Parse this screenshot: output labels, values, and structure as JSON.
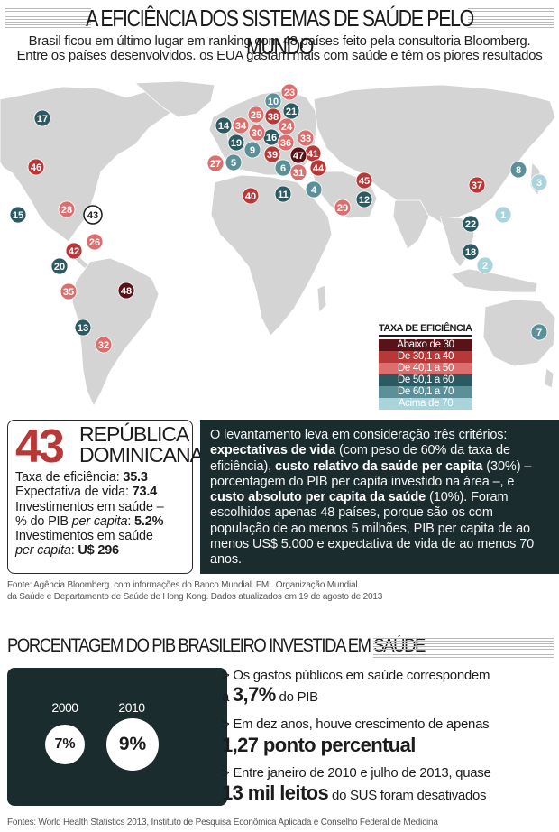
{
  "header": {
    "title": "A EFICIÊNCIA DOS SISTEMAS DE SAÚDE PELO MUNDO",
    "subtitle_line1": "Brasil ficou em último lugar em ranking com 48 países feito pela consultoria Bloomberg.",
    "subtitle_line2": "Entre os países desenvolvidos. os EUA gastam mais com saúde e têm os piores resultados"
  },
  "legend": {
    "title": "TAXA DE EFICIÊNCIA",
    "items": [
      {
        "label": "Abaixo de 30",
        "color": "#5a1219"
      },
      {
        "label": "De 30,1 a 40",
        "color": "#b83838"
      },
      {
        "label": "De 40,1 a 50",
        "color": "#dc6e6e"
      },
      {
        "label": "De 50,1 a 60",
        "color": "#2c5a62"
      },
      {
        "label": "De 60,1 a 70",
        "color": "#5b9099"
      },
      {
        "label": "Acima de 70",
        "color": "#a9d4dc"
      }
    ]
  },
  "chart_data": {
    "type": "map",
    "description_units": "rank in efficiency ranking (1 = best, 48 = worst)",
    "countries": [
      {
        "rank": 1,
        "tier": 5
      },
      {
        "rank": 2,
        "tier": 5
      },
      {
        "rank": 3,
        "tier": 5
      },
      {
        "rank": 4,
        "tier": 4
      },
      {
        "rank": 5,
        "tier": 4
      },
      {
        "rank": 6,
        "tier": 4
      },
      {
        "rank": 7,
        "tier": 4
      },
      {
        "rank": 8,
        "tier": 4
      },
      {
        "rank": 9,
        "tier": 4
      },
      {
        "rank": 10,
        "tier": 4
      },
      {
        "rank": 11,
        "tier": 3
      },
      {
        "rank": 12,
        "tier": 3
      },
      {
        "rank": 13,
        "tier": 3
      },
      {
        "rank": 14,
        "tier": 3
      },
      {
        "rank": 15,
        "tier": 3
      },
      {
        "rank": 16,
        "tier": 3
      },
      {
        "rank": 17,
        "tier": 3
      },
      {
        "rank": 18,
        "tier": 3
      },
      {
        "rank": 19,
        "tier": 3
      },
      {
        "rank": 20,
        "tier": 3
      },
      {
        "rank": 21,
        "tier": 3
      },
      {
        "rank": 22,
        "tier": 3
      },
      {
        "rank": 23,
        "tier": 2
      },
      {
        "rank": 24,
        "tier": 2
      },
      {
        "rank": 25,
        "tier": 2
      },
      {
        "rank": 26,
        "tier": 2
      },
      {
        "rank": 27,
        "tier": 2
      },
      {
        "rank": 28,
        "tier": 2
      },
      {
        "rank": 29,
        "tier": 2
      },
      {
        "rank": 30,
        "tier": 2
      },
      {
        "rank": 31,
        "tier": 2
      },
      {
        "rank": 32,
        "tier": 2
      },
      {
        "rank": 33,
        "tier": 2
      },
      {
        "rank": 34,
        "tier": 2
      },
      {
        "rank": 35,
        "tier": 2
      },
      {
        "rank": 36,
        "tier": 2
      },
      {
        "rank": 37,
        "tier": 1
      },
      {
        "rank": 38,
        "tier": 1
      },
      {
        "rank": 39,
        "tier": 1
      },
      {
        "rank": 40,
        "tier": 1
      },
      {
        "rank": 41,
        "tier": 1
      },
      {
        "rank": 42,
        "tier": 1
      },
      {
        "rank": 43,
        "tier": 1
      },
      {
        "rank": 44,
        "tier": 1
      },
      {
        "rank": 45,
        "tier": 1
      },
      {
        "rank": 46,
        "tier": 1
      },
      {
        "rank": 47,
        "tier": 0
      },
      {
        "rank": 48,
        "tier": 0
      }
    ]
  },
  "highlight": {
    "rank": "43",
    "name_line1": "REPÚBLICA",
    "name_line2": "DOMINICANA",
    "efficiency_label": "Taxa de eficiência: ",
    "efficiency_value": "35.3",
    "life_label": "Expectativa de vida: ",
    "life_value": "73.4",
    "invest_gdp_label1": "Investimentos em saúde –",
    "invest_gdp_label2a": "% do PIB ",
    "invest_gdp_label2b": "per capita",
    "invest_gdp_label2c": ": ",
    "invest_gdp_value": "5.2%",
    "invest_abs_label1": "Investimentos em saúde",
    "invest_abs_label2a": "per capita",
    "invest_abs_label2b": ": ",
    "invest_abs_value": "U$ 296"
  },
  "criteria": {
    "p1": "O levantamento leva em consideração três critérios: ",
    "b1": "expectativas de vida",
    "p2": " (com peso de 60% da taxa de eficiência), ",
    "b2": "custo relativo da saúde per capita",
    "p3": " (30%) – porcentagem do PIB per capita investido na área –, e ",
    "b3": "custo absoluto per capita da saúde",
    "p4": " (10%). Foram escolhidos apenas 48 países, porque são os com população de ao menos 5 milhões, PIB per capita de ao menos US$ 5.000 e expectativa de vida de ao menos 70 anos."
  },
  "source1_line1": "Fonte: Agência Bloomberg. com informações do Banco Mundial. FMI. Organização Mundial",
  "source1_line2": "da Saúde e Departamento de Saúde de Hong Kong. Dados atualizados em 19 de agosto de 2013",
  "pib": {
    "title": "PORCENTAGEM DO PIB BRASILEIRO INVESTIDA EM SAÚDE",
    "years": [
      {
        "year": "2000",
        "value": "7%"
      },
      {
        "year": "2010",
        "value": "9%"
      }
    ],
    "fact1_a": "> Os gastos públicos em saúde correspondem",
    "fact1_b": "a ",
    "fact1_big": "3,7%",
    "fact1_c": " do PIB",
    "fact2_a": "> Em dez anos, houve crescimento de apenas",
    "fact2_big": "1,27 ponto percentual",
    "fact3_a": "> Entre janeiro de 2010 e julho de 2013, quase",
    "fact3_big": "13 mil leitos",
    "fact3_c": " do SUS foram desativados"
  },
  "source2": "Fontes: World Health Statistics 2013, Instituto de Pesquisa Econômica Aplicada e Conselho Federal de Medicina"
}
